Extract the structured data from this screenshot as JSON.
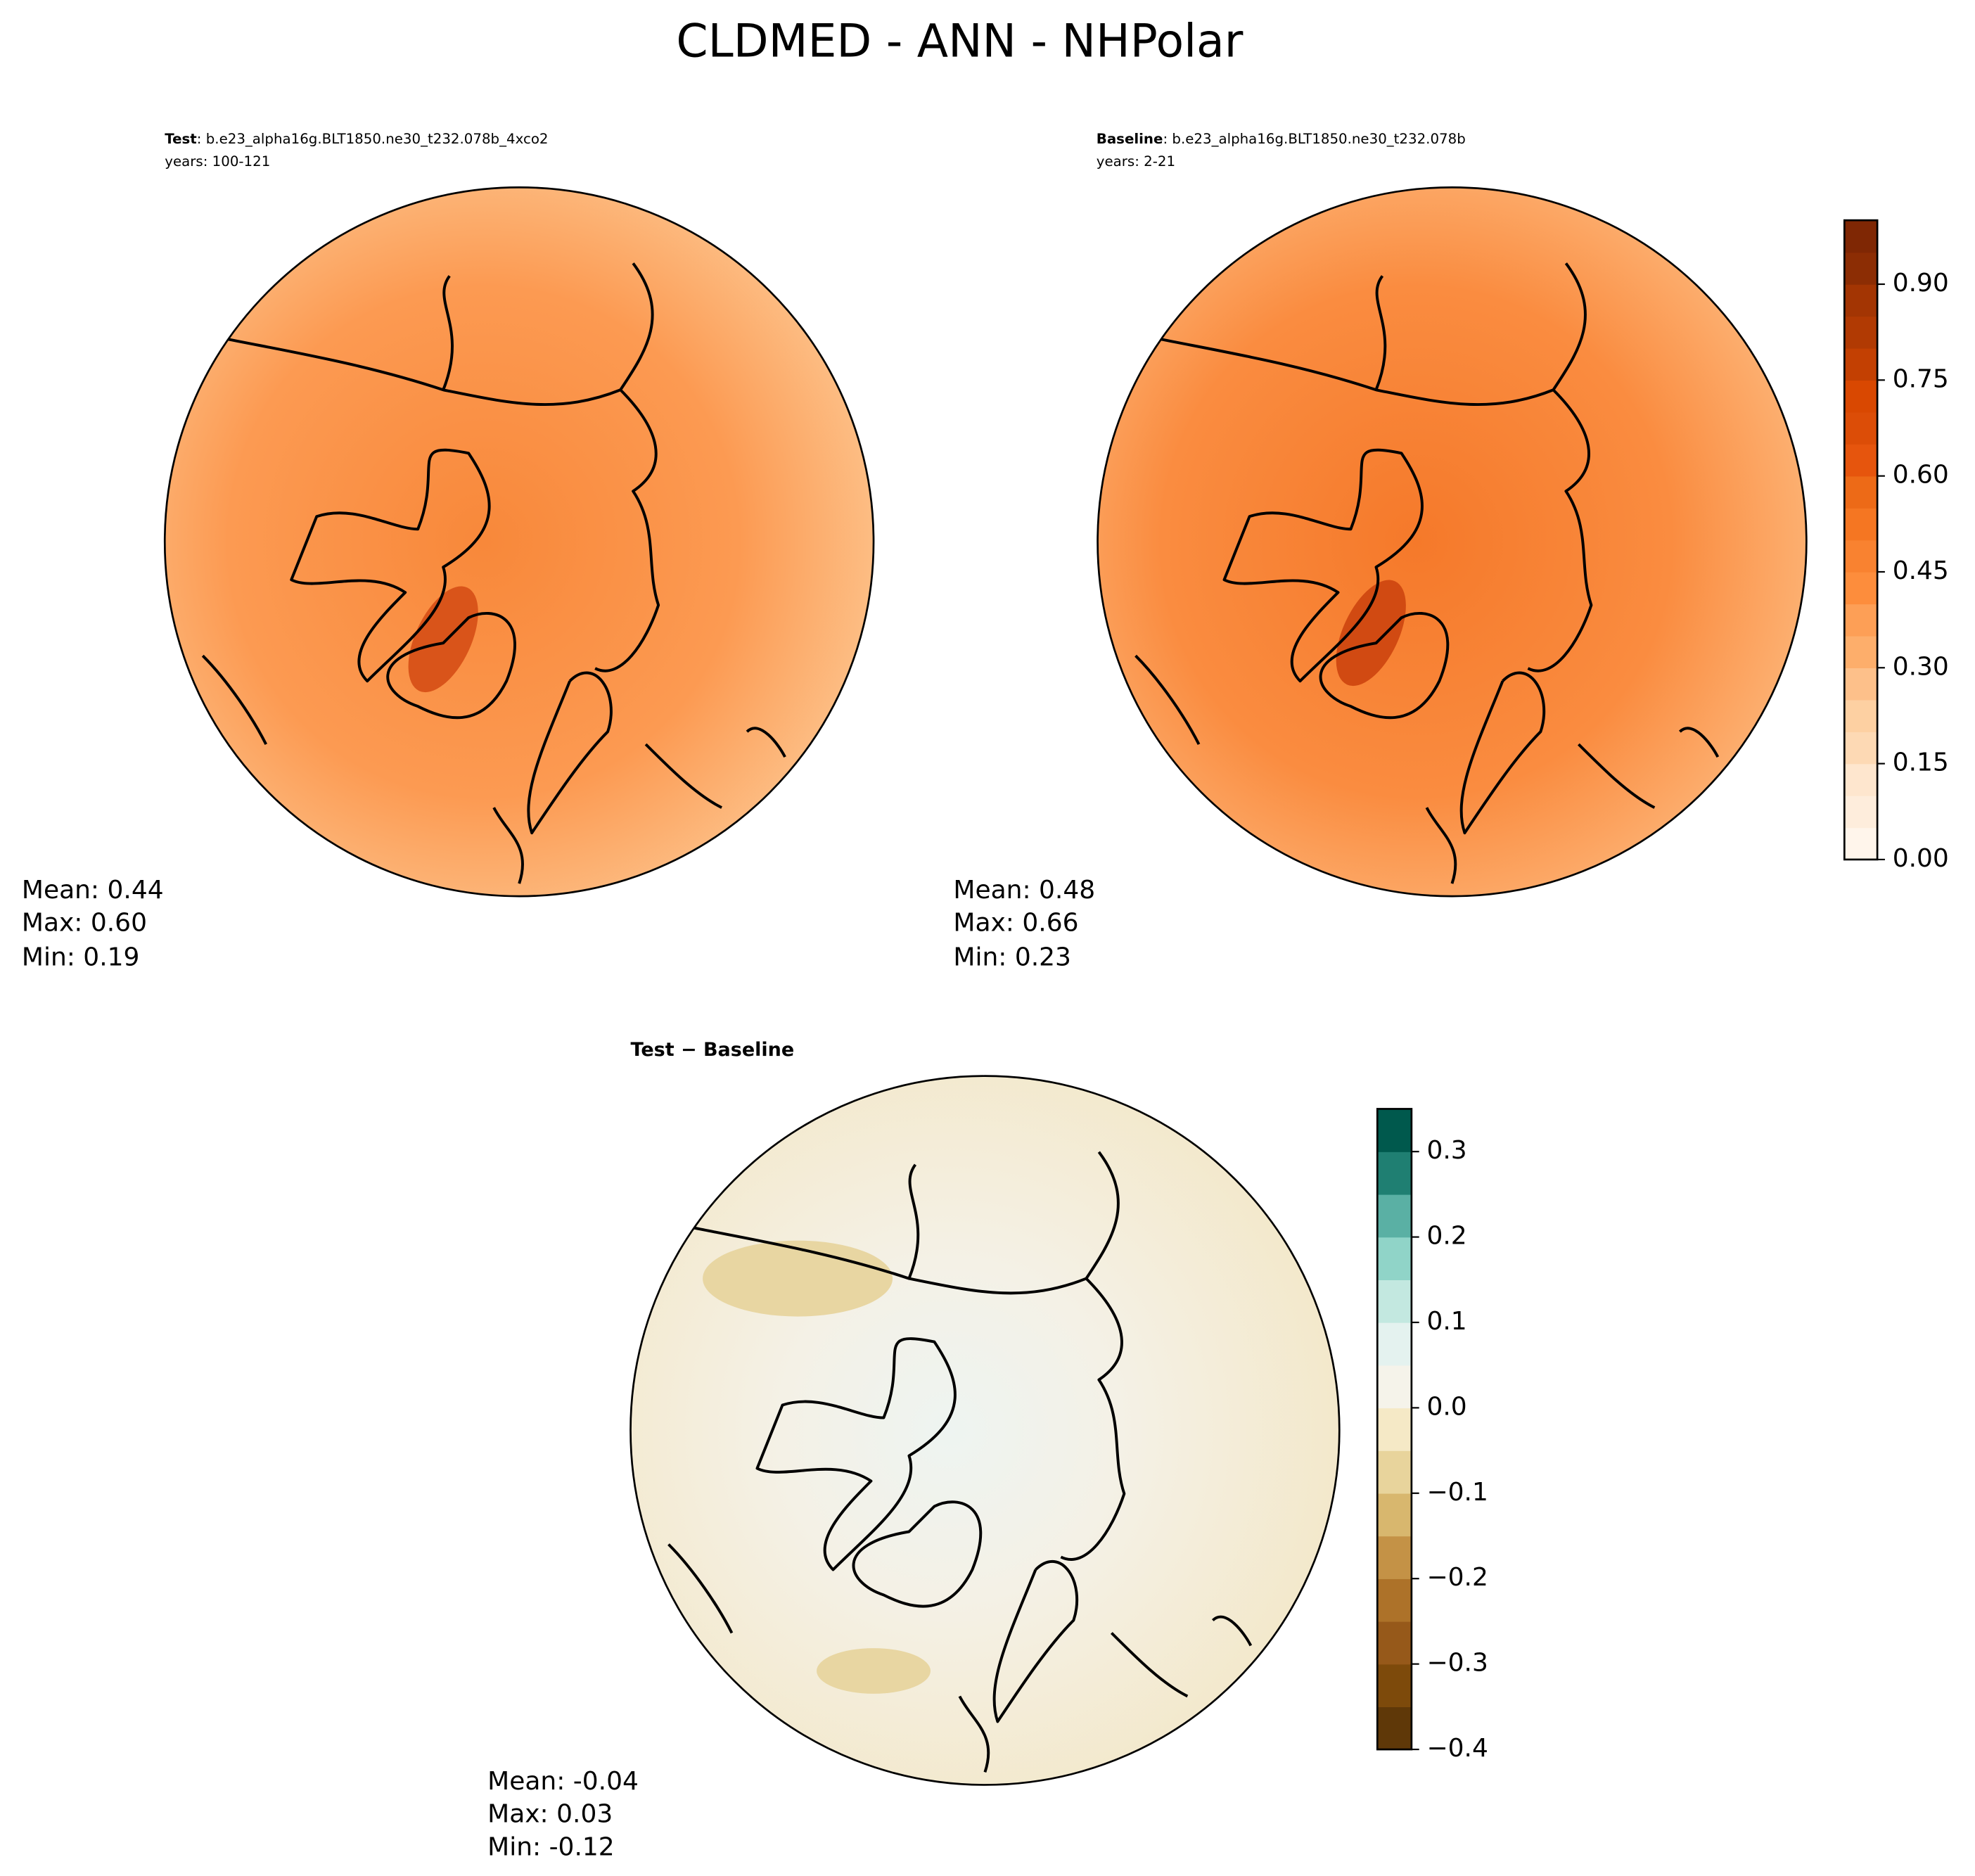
{
  "title": "CLDMED - ANN - NHPolar",
  "panels": [
    {
      "label": "Test",
      "case": ": b.e23_alpha16g.BLT1850.ne30_t232.078b_4xco2",
      "years": "years: 100-121",
      "stats": [
        "Mean:  0.44",
        "Max:  0.60",
        "Min:  0.19"
      ]
    },
    {
      "label": "Baseline",
      "case": ": b.e23_alpha16g.BLT1850.ne30_t232.078b",
      "years": "years: 2-21",
      "stats": [
        "Mean:  0.48",
        "Max:  0.66",
        "Min:  0.23"
      ]
    },
    {
      "label": "Test − Baseline",
      "stats": [
        "Mean: -0.04",
        "Max:  0.03",
        "Min: -0.12"
      ]
    }
  ],
  "colorbars": [
    {
      "lim": [
        0,
        1
      ],
      "ticks": [
        {
          "value": 0,
          "label": "0.00"
        },
        {
          "value": 0.15,
          "label": "0.15"
        },
        {
          "value": 0.3,
          "label": "0.30"
        },
        {
          "value": 0.45,
          "label": "0.45"
        },
        {
          "value": 0.6,
          "label": "0.60"
        },
        {
          "value": 0.75,
          "label": "0.75"
        },
        {
          "value": 0.9,
          "label": "0.90"
        }
      ],
      "colors": [
        "#fff5eb",
        "#feeddc",
        "#fee6ce",
        "#fdd9b4",
        "#fdd0a2",
        "#fdc08a",
        "#fdae6b",
        "#fd9f56",
        "#fd8d3c",
        "#f98230",
        "#f57622",
        "#ed6a17",
        "#e6550d",
        "#dc4d07",
        "#d94801",
        "#c34002",
        "#b13a03",
        "#a33503",
        "#8c2d04",
        "#7f2704"
      ]
    },
    {
      "lim": [
        -0.4,
        0.35
      ],
      "ticks": [
        {
          "value": -0.4,
          "label": "−0.4"
        },
        {
          "value": -0.3,
          "label": "−0.3"
        },
        {
          "value": -0.2,
          "label": "−0.2"
        },
        {
          "value": -0.1,
          "label": "−0.1"
        },
        {
          "value": 0,
          "label": "0.0"
        },
        {
          "value": 0.1,
          "label": "0.1"
        },
        {
          "value": 0.2,
          "label": "0.2"
        },
        {
          "value": 0.3,
          "label": "0.3"
        }
      ],
      "colors": [
        "#5f3808",
        "#7d4a0b",
        "#96591a",
        "#ad7229",
        "#c49246",
        "#d8b76e",
        "#e8d49c",
        "#f5e9c6",
        "#f5f3ea",
        "#e4f2ef",
        "#c3e8e0",
        "#90d4c8",
        "#5ab0a4",
        "#1f7f72",
        "#00594d"
      ]
    }
  ]
}
